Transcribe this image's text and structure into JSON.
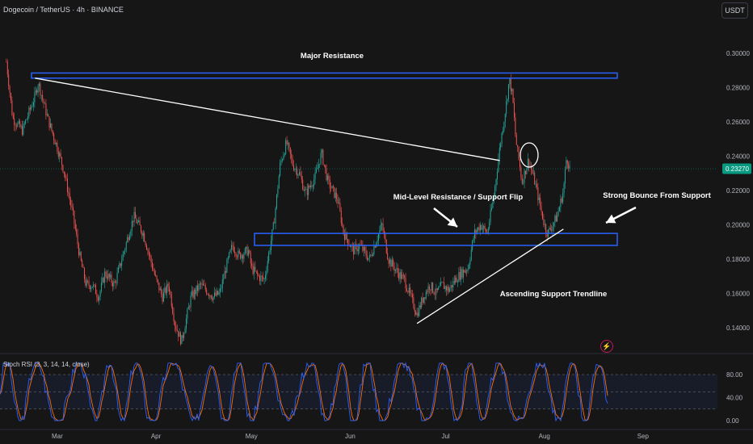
{
  "header": {
    "symbol_title": "Dogecoin / TetherUS · 4h · BINANCE",
    "currency_button": "USDT"
  },
  "colors": {
    "background": "#161616",
    "bull": "#26a69a",
    "bear": "#ef5350",
    "zone": "#2962ff",
    "line": "#ffffff",
    "price_tag": "#089981",
    "stoch_k": "#2962ff",
    "stoch_d": "#ff6d00"
  },
  "icons": {
    "alert": "lightning-bolt-icon"
  },
  "chart_data": [
    {
      "type": "candlestick",
      "title": "Dogecoin / TetherUS · 4h · BINANCE",
      "x_ticks": [
        "Mar",
        "Apr",
        "May",
        "Jun",
        "Jul",
        "Aug",
        "Sep"
      ],
      "y_ticks": [
        "0.30000",
        "0.28000",
        "0.26000",
        "0.24000",
        "0.22000",
        "0.20000",
        "0.18000",
        "0.16000",
        "0.14000"
      ],
      "ylim": [
        0.125,
        0.31
      ],
      "last_price": "0.23270",
      "grid": false,
      "price_path": [
        {
          "x": "Feb 13",
          "y": 0.295
        },
        {
          "x": "Feb 15",
          "y": 0.262
        },
        {
          "x": "Feb 18",
          "y": 0.255
        },
        {
          "x": "Feb 22",
          "y": 0.275
        },
        {
          "x": "Feb 23",
          "y": 0.283
        },
        {
          "x": "Feb 26",
          "y": 0.262
        },
        {
          "x": "Mar 1",
          "y": 0.245
        },
        {
          "x": "Mar 3",
          "y": 0.232
        },
        {
          "x": "Mar 6",
          "y": 0.205
        },
        {
          "x": "Mar 8",
          "y": 0.182
        },
        {
          "x": "Mar 10",
          "y": 0.165
        },
        {
          "x": "Mar 12",
          "y": 0.165
        },
        {
          "x": "Mar 14",
          "y": 0.158
        },
        {
          "x": "Mar 16",
          "y": 0.172
        },
        {
          "x": "Mar 19",
          "y": 0.165
        },
        {
          "x": "Mar 22",
          "y": 0.185
        },
        {
          "x": "Mar 25",
          "y": 0.205
        },
        {
          "x": "Mar 28",
          "y": 0.195
        },
        {
          "x": "Apr 1",
          "y": 0.168
        },
        {
          "x": "Apr 3",
          "y": 0.158
        },
        {
          "x": "Apr 5",
          "y": 0.165
        },
        {
          "x": "Apr 7",
          "y": 0.142
        },
        {
          "x": "Apr 9",
          "y": 0.132
        },
        {
          "x": "Apr 12",
          "y": 0.158
        },
        {
          "x": "Apr 15",
          "y": 0.165
        },
        {
          "x": "Apr 19",
          "y": 0.158
        },
        {
          "x": "Apr 21",
          "y": 0.16
        },
        {
          "x": "Apr 23",
          "y": 0.175
        },
        {
          "x": "Apr 25",
          "y": 0.188
        },
        {
          "x": "Apr 27",
          "y": 0.182
        },
        {
          "x": "Apr 30",
          "y": 0.185
        },
        {
          "x": "May 1",
          "y": 0.175
        },
        {
          "x": "May 3",
          "y": 0.17
        },
        {
          "x": "May 5",
          "y": 0.168
        },
        {
          "x": "May 8",
          "y": 0.2
        },
        {
          "x": "May 10",
          "y": 0.235
        },
        {
          "x": "May 12",
          "y": 0.248
        },
        {
          "x": "May 14",
          "y": 0.235
        },
        {
          "x": "May 16",
          "y": 0.23
        },
        {
          "x": "May 18",
          "y": 0.218
        },
        {
          "x": "May 21",
          "y": 0.228
        },
        {
          "x": "May 23",
          "y": 0.242
        },
        {
          "x": "May 25",
          "y": 0.225
        },
        {
          "x": "May 28",
          "y": 0.215
        },
        {
          "x": "May 30",
          "y": 0.195
        },
        {
          "x": "Jun 2",
          "y": 0.185
        },
        {
          "x": "Jun 4",
          "y": 0.188
        },
        {
          "x": "Jun 7",
          "y": 0.18
        },
        {
          "x": "Jun 9",
          "y": 0.19
        },
        {
          "x": "Jun 11",
          "y": 0.2
        },
        {
          "x": "Jun 13",
          "y": 0.18
        },
        {
          "x": "Jun 16",
          "y": 0.172
        },
        {
          "x": "Jun 18",
          "y": 0.168
        },
        {
          "x": "Jun 20",
          "y": 0.158
        },
        {
          "x": "Jun 22",
          "y": 0.148
        },
        {
          "x": "Jun 24",
          "y": 0.158
        },
        {
          "x": "Jun 26",
          "y": 0.165
        },
        {
          "x": "Jun 28",
          "y": 0.16
        },
        {
          "x": "Jun 30",
          "y": 0.165
        },
        {
          "x": "Jul 2",
          "y": 0.162
        },
        {
          "x": "Jul 4",
          "y": 0.168
        },
        {
          "x": "Jul 6",
          "y": 0.172
        },
        {
          "x": "Jul 8",
          "y": 0.175
        },
        {
          "x": "Jul 10",
          "y": 0.195
        },
        {
          "x": "Jul 12",
          "y": 0.2
        },
        {
          "x": "Jul 14",
          "y": 0.195
        },
        {
          "x": "Jul 16",
          "y": 0.215
        },
        {
          "x": "Jul 18",
          "y": 0.245
        },
        {
          "x": "Jul 20",
          "y": 0.27
        },
        {
          "x": "Jul 21",
          "y": 0.285
        },
        {
          "x": "Jul 22",
          "y": 0.275
        },
        {
          "x": "Jul 23",
          "y": 0.25
        },
        {
          "x": "Jul 25",
          "y": 0.225
        },
        {
          "x": "Jul 27",
          "y": 0.238
        },
        {
          "x": "Jul 29",
          "y": 0.225
        },
        {
          "x": "Aug 1",
          "y": 0.2
        },
        {
          "x": "Aug 2",
          "y": 0.195
        },
        {
          "x": "Aug 3",
          "y": 0.198
        },
        {
          "x": "Aug 5",
          "y": 0.205
        },
        {
          "x": "Aug 7",
          "y": 0.22
        },
        {
          "x": "Aug 8",
          "y": 0.24
        },
        {
          "x": "Aug 9",
          "y": 0.2327
        }
      ],
      "zones": [
        {
          "label": "Major Resistance",
          "from": 0.2855,
          "to": 0.2885
        },
        {
          "label": "Mid-Level Resistance / Support Flip",
          "from": 0.188,
          "to": 0.195
        }
      ],
      "trendlines": [
        {
          "from": {
            "x": "Feb 22",
            "y": 0.2855
          },
          "to": {
            "x": "Jul 18",
            "y": 0.2375
          }
        },
        {
          "label": "Ascending Support Trendline",
          "from": {
            "x": "Jun 22",
            "y": 0.1425
          },
          "to": {
            "x": "Aug 7",
            "y": 0.1975
          }
        }
      ],
      "annotations": [
        "Major Resistance",
        "Mid-Level Resistance / Support Flip",
        "Strong Bounce From Support",
        "Ascending Support Trendline"
      ]
    },
    {
      "type": "line",
      "title": "Stoch RSI (3, 3, 14, 14, close)",
      "y_ticks": [
        "80.00",
        "40.00",
        "0.00"
      ],
      "ylim": [
        0,
        100
      ],
      "bands": [
        20,
        50,
        80
      ],
      "series": [
        {
          "color": "#2962ff"
        },
        {
          "color": "#ff6d00"
        }
      ]
    }
  ]
}
